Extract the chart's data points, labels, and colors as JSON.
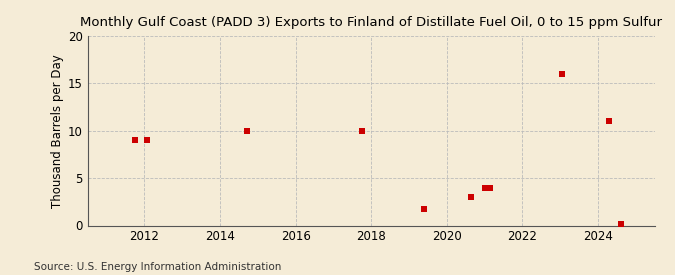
{
  "title": "Monthly Gulf Coast (PADD 3) Exports to Finland of Distillate Fuel Oil, 0 to 15 ppm Sulfur",
  "ylabel": "Thousand Barrels per Day",
  "source": "Source: U.S. Energy Information Administration",
  "background_color": "#f5ecd7",
  "plot_background_color": "#f5ecd7",
  "marker_color": "#cc0000",
  "marker_size": 4,
  "marker_style": "s",
  "ylim": [
    0,
    20
  ],
  "yticks": [
    0,
    5,
    10,
    15,
    20
  ],
  "xlim": [
    2010.5,
    2025.5
  ],
  "xticks": [
    2012,
    2014,
    2016,
    2018,
    2020,
    2022,
    2024
  ],
  "grid_color": "#bbbbbb",
  "data_x": [
    2011.75,
    2012.08,
    2014.7,
    2017.75,
    2019.4,
    2020.65,
    2021.0,
    2021.15,
    2023.05,
    2024.3,
    2024.6
  ],
  "data_y": [
    9,
    9,
    10,
    10,
    1.7,
    3,
    4,
    4,
    16,
    11,
    0.2
  ],
  "title_fontsize": 9.5,
  "axis_fontsize": 8.5,
  "source_fontsize": 7.5
}
